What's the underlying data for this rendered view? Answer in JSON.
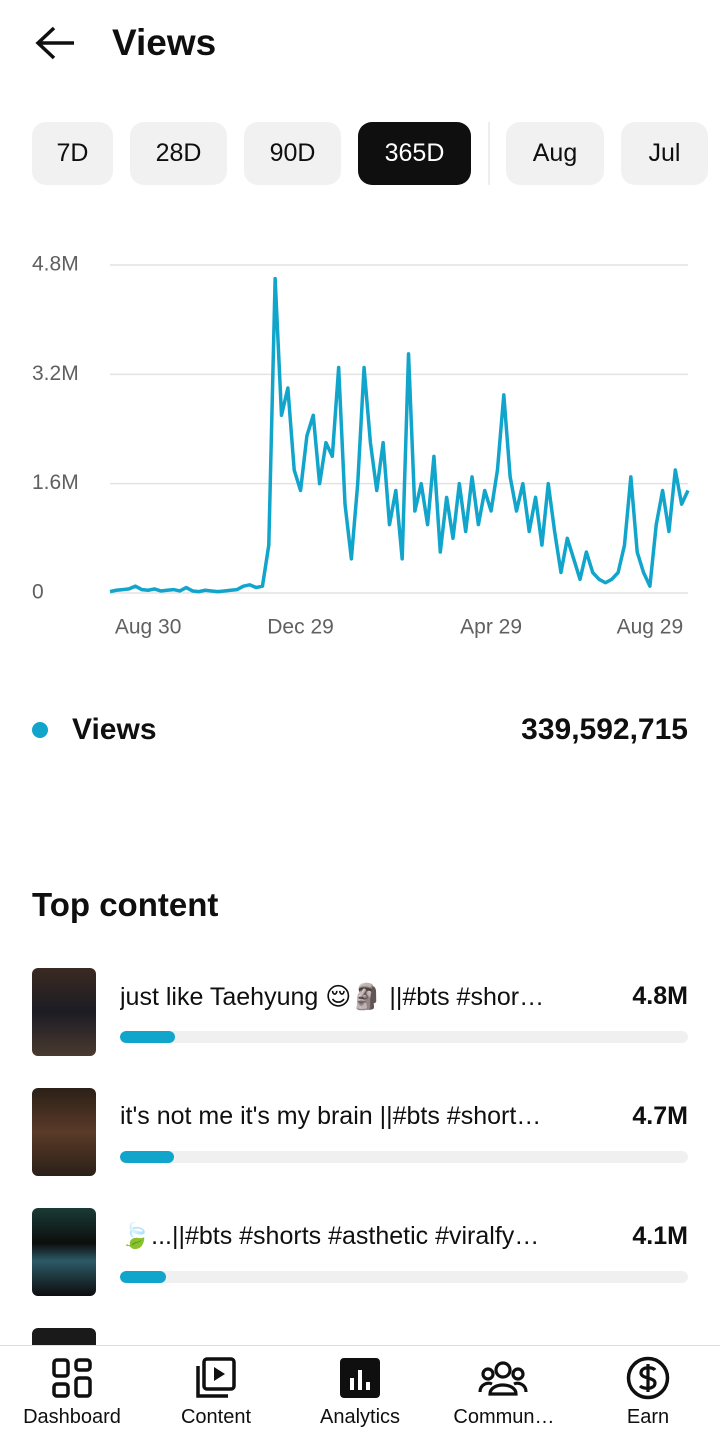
{
  "header": {
    "title": "Views"
  },
  "tabs": [
    "7D",
    "28D",
    "90D",
    "365D",
    "Aug",
    "Jul"
  ],
  "chart_data": {
    "type": "line",
    "categories": [
      null,
      null,
      null,
      null,
      null,
      null,
      "Aug 30",
      null,
      null,
      null,
      null,
      null,
      null,
      null,
      null,
      null,
      null,
      null,
      null,
      null,
      null,
      null,
      null,
      null,
      null,
      null,
      null,
      null,
      null,
      null,
      "Dec 29",
      null,
      null,
      null,
      null,
      null,
      null,
      null,
      null,
      null,
      null,
      null,
      null,
      null,
      null,
      null,
      null,
      null,
      null,
      null,
      null,
      null,
      null,
      null,
      null,
      null,
      null,
      null,
      null,
      null,
      "Apr 29",
      null,
      null,
      null,
      null,
      null,
      null,
      null,
      null,
      null,
      null,
      null,
      null,
      null,
      null,
      null,
      null,
      null,
      null,
      null,
      null,
      null,
      null,
      null,
      null,
      "Aug 29",
      null,
      null,
      null,
      null,
      null,
      null
    ],
    "series": [
      {
        "name": "Views",
        "color": "#12a5cb",
        "values": [
          20000,
          40000,
          50000,
          60000,
          100000,
          50000,
          40000,
          60000,
          30000,
          40000,
          50000,
          30000,
          80000,
          30000,
          20000,
          40000,
          30000,
          20000,
          30000,
          40000,
          50000,
          100000,
          120000,
          80000,
          100000,
          700000,
          4600000,
          2600000,
          3000000,
          1800000,
          1500000,
          2300000,
          2600000,
          1600000,
          2200000,
          2000000,
          3300000,
          1300000,
          500000,
          1600000,
          3300000,
          2200000,
          1500000,
          2200000,
          1000000,
          1500000,
          500000,
          3500000,
          1200000,
          1600000,
          1000000,
          2000000,
          600000,
          1400000,
          800000,
          1600000,
          900000,
          1700000,
          1000000,
          1500000,
          1200000,
          1800000,
          2900000,
          1700000,
          1200000,
          1600000,
          900000,
          1400000,
          700000,
          1600000,
          900000,
          300000,
          800000,
          500000,
          200000,
          600000,
          300000,
          200000,
          150000,
          200000,
          300000,
          700000,
          1700000,
          600000,
          300000,
          100000,
          1000000,
          1500000,
          900000,
          1800000,
          1300000,
          1500000
        ]
      }
    ],
    "ylim": [
      0,
      4800000
    ],
    "yticks": [
      0,
      {
        "value": 1600000,
        "label": "1.6M"
      },
      {
        "value": 3200000,
        "label": "3.2M"
      },
      {
        "value": 4800000,
        "label": "4.8M"
      }
    ],
    "grid": true
  },
  "summary_total": "339,592,715",
  "top_content": {
    "title": "Top content",
    "items": [
      {
        "title": "just like Taehyung 😌🗿 ||#bts #shor…",
        "views": "4.8M",
        "bar": 0.097
      },
      {
        "title": "it's not me it's my brain ||#bts #short…",
        "views": "4.7M",
        "bar": 0.095
      },
      {
        "title": "🍃...||#bts #shorts #asthetic #viralfy…",
        "views": "4.1M",
        "bar": 0.081
      }
    ]
  },
  "nav": [
    "Dashboard",
    "Content",
    "Analytics",
    "Commun…",
    "Earn"
  ]
}
